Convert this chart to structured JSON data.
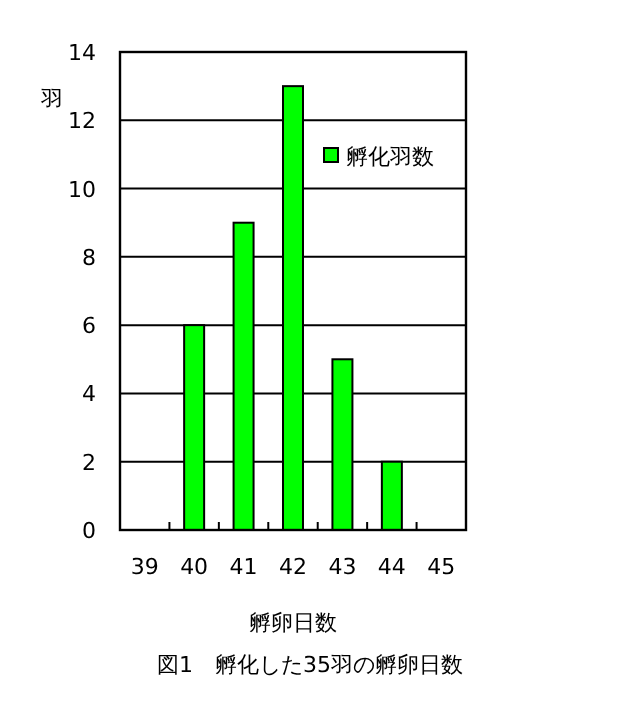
{
  "chart_data": {
    "type": "bar",
    "title": "図1　孵化した35羽の孵卵日数",
    "xlabel": "孵卵日数",
    "ylabel": "羽",
    "categories": [
      "39",
      "40",
      "41",
      "42",
      "43",
      "44",
      "45"
    ],
    "series": [
      {
        "name": "孵化羽数",
        "color": "#00ff00",
        "values": [
          0,
          6,
          9,
          13,
          5,
          2,
          0
        ]
      }
    ],
    "ylim": [
      0,
      14
    ],
    "yticks": [
      0,
      2,
      4,
      6,
      8,
      10,
      12,
      14
    ],
    "grid": "y",
    "legend": "top right"
  }
}
